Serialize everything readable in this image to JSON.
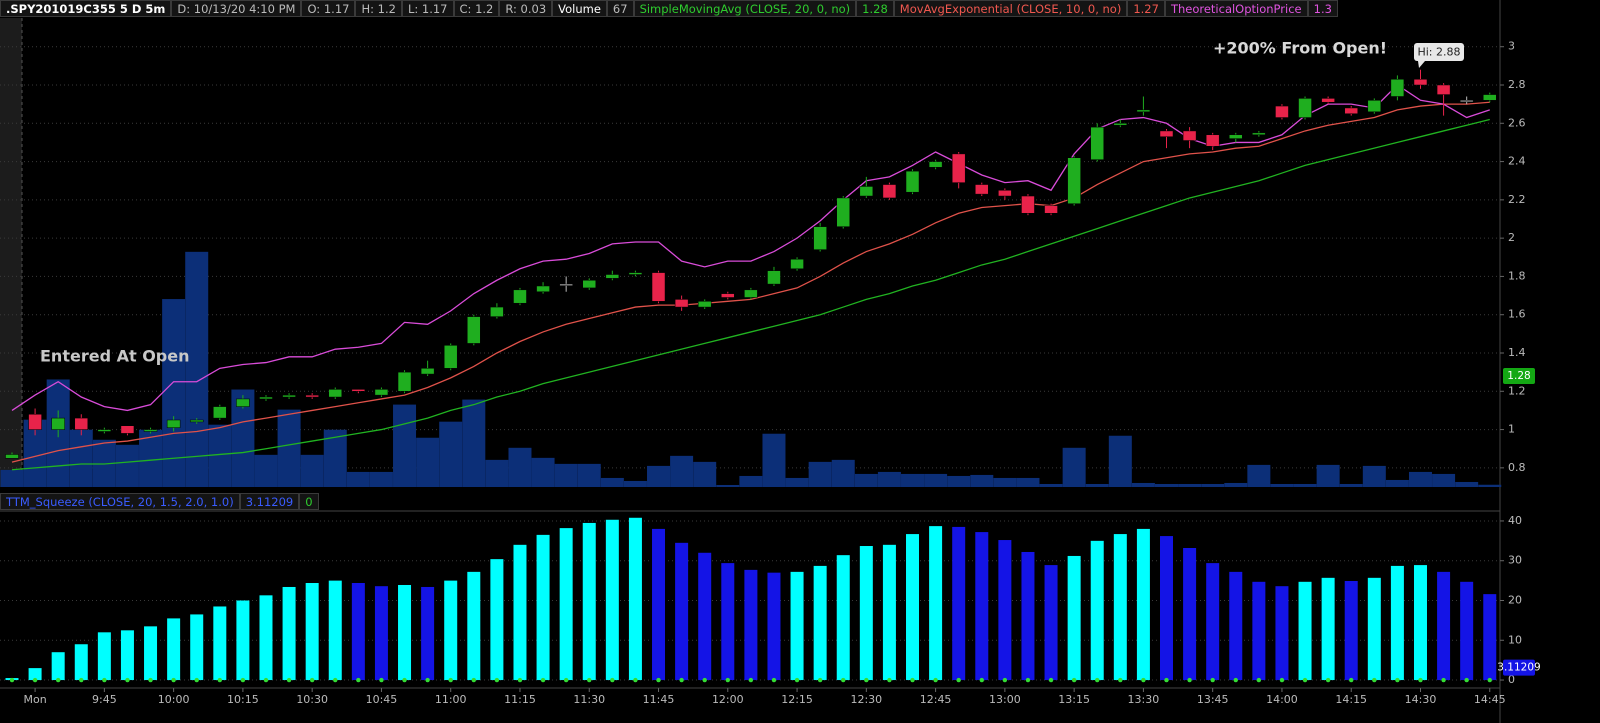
{
  "header": {
    "symbol": ".SPY201019C355 5 D 5m",
    "fields": [
      {
        "label": "D:",
        "value": "10/13/20 4:10 PM"
      },
      {
        "label": "O:",
        "value": 1.17
      },
      {
        "label": "H:",
        "value": 1.2
      },
      {
        "label": "L:",
        "value": 1.17
      },
      {
        "label": "C:",
        "value": 1.2
      },
      {
        "label": "R:",
        "value": 0.03
      }
    ]
  },
  "chart_data": [
    {
      "type": "candlestick",
      "ylim": [
        0.7,
        3.15
      ],
      "yticks": [
        0.8,
        1,
        1.2,
        1.4,
        1.6,
        1.8,
        2,
        2.2,
        2.4,
        2.6,
        2.8,
        3
      ],
      "grid": true,
      "up_color": "#1fae1f",
      "down_color": "#e8234a",
      "flat_color": "#bbbbbb",
      "open": [
        0.85,
        1.08,
        1.0,
        1.06,
        0.99,
        1.02,
        0.99,
        1.01,
        1.04,
        1.06,
        1.12,
        1.16,
        1.17,
        1.18,
        1.17,
        1.21,
        1.18,
        1.2,
        1.29,
        1.32,
        1.45,
        1.59,
        1.66,
        1.72,
        1.76,
        1.74,
        1.79,
        1.81,
        1.82,
        1.68,
        1.64,
        1.71,
        1.69,
        1.76,
        1.84,
        1.94,
        2.06,
        2.22,
        2.28,
        2.24,
        2.37,
        2.44,
        2.28,
        2.25,
        2.22,
        2.17,
        2.18,
        2.41,
        2.59,
        2.66,
        2.56,
        2.56,
        2.54,
        2.52,
        2.54,
        2.69,
        2.63,
        2.73,
        2.68,
        2.66,
        2.74,
        2.83,
        2.8,
        2.72,
        2.72
      ],
      "high": [
        0.88,
        1.11,
        1.1,
        1.08,
        1.01,
        1.02,
        1.01,
        1.07,
        1.06,
        1.13,
        1.18,
        1.18,
        1.19,
        1.19,
        1.22,
        1.21,
        1.22,
        1.31,
        1.36,
        1.45,
        1.6,
        1.66,
        1.74,
        1.77,
        1.8,
        1.79,
        1.83,
        1.83,
        1.83,
        1.7,
        1.68,
        1.72,
        1.74,
        1.85,
        1.9,
        2.08,
        2.22,
        2.32,
        2.29,
        2.36,
        2.41,
        2.45,
        2.29,
        2.26,
        2.23,
        2.18,
        2.43,
        2.6,
        2.62,
        2.74,
        2.57,
        2.58,
        2.55,
        2.55,
        2.56,
        2.7,
        2.74,
        2.74,
        2.69,
        2.73,
        2.85,
        2.88,
        2.81,
        2.74,
        2.76
      ],
      "low": [
        0.85,
        0.97,
        0.96,
        0.97,
        0.98,
        0.97,
        0.98,
        0.99,
        1.03,
        1.05,
        1.11,
        1.15,
        1.16,
        1.16,
        1.16,
        1.19,
        1.17,
        1.19,
        1.28,
        1.31,
        1.44,
        1.58,
        1.65,
        1.71,
        1.72,
        1.73,
        1.78,
        1.8,
        1.66,
        1.62,
        1.63,
        1.68,
        1.68,
        1.75,
        1.83,
        1.93,
        2.05,
        2.21,
        2.2,
        2.23,
        2.36,
        2.26,
        2.22,
        2.2,
        2.12,
        2.12,
        2.17,
        2.4,
        2.58,
        2.64,
        2.47,
        2.47,
        2.46,
        2.5,
        2.53,
        2.62,
        2.62,
        2.7,
        2.64,
        2.65,
        2.72,
        2.78,
        2.64,
        2.7,
        2.71
      ],
      "close": [
        0.87,
        1.0,
        1.06,
        1.0,
        1.0,
        0.98,
        1.0,
        1.05,
        1.05,
        1.12,
        1.16,
        1.17,
        1.18,
        1.17,
        1.21,
        1.2,
        1.21,
        1.3,
        1.32,
        1.44,
        1.59,
        1.64,
        1.73,
        1.75,
        1.76,
        1.78,
        1.81,
        1.82,
        1.67,
        1.64,
        1.67,
        1.69,
        1.73,
        1.83,
        1.89,
        2.06,
        2.21,
        2.27,
        2.21,
        2.35,
        2.4,
        2.29,
        2.23,
        2.22,
        2.13,
        2.13,
        2.42,
        2.58,
        2.6,
        2.67,
        2.53,
        2.51,
        2.48,
        2.54,
        2.55,
        2.63,
        2.73,
        2.71,
        2.65,
        2.72,
        2.83,
        2.8,
        2.75,
        2.72,
        2.75
      ],
      "volume": {
        "name": "Volume",
        "last_label": 67,
        "color": "#0c2f78",
        "lim": [
          0,
          14000
        ],
        "values": [
          510,
          2010,
          3210,
          1710,
          1410,
          1260,
          1710,
          5610,
          7020,
          1860,
          2910,
          960,
          2310,
          960,
          1710,
          450,
          450,
          2460,
          1470,
          1950,
          2610,
          810,
          1170,
          870,
          690,
          690,
          270,
          180,
          630,
          930,
          750,
          60,
          330,
          1590,
          270,
          750,
          810,
          390,
          450,
          390,
          390,
          330,
          360,
          270,
          270,
          90,
          1170,
          90,
          1530,
          120,
          90,
          90,
          90,
          120,
          660,
          90,
          90,
          660,
          90,
          630,
          210,
          450,
          390,
          150,
          67
        ]
      },
      "series": [
        {
          "name": "SimpleMovingAvg (CLOSE, 20, 0, no)",
          "last_label": 1.28,
          "color": "#21b321",
          "values": [
            0.79,
            0.8,
            0.81,
            0.82,
            0.82,
            0.83,
            0.84,
            0.85,
            0.86,
            0.87,
            0.88,
            0.9,
            0.92,
            0.94,
            0.96,
            0.98,
            1.0,
            1.03,
            1.06,
            1.1,
            1.13,
            1.17,
            1.2,
            1.24,
            1.27,
            1.3,
            1.33,
            1.36,
            1.39,
            1.42,
            1.45,
            1.48,
            1.51,
            1.54,
            1.57,
            1.6,
            1.64,
            1.68,
            1.71,
            1.75,
            1.78,
            1.82,
            1.86,
            1.89,
            1.93,
            1.97,
            2.01,
            2.05,
            2.09,
            2.13,
            2.17,
            2.21,
            2.24,
            2.27,
            2.3,
            2.34,
            2.38,
            2.41,
            2.44,
            2.47,
            2.5,
            2.53,
            2.56,
            2.59,
            2.62
          ]
        },
        {
          "name": "MovAvgExponential (CLOSE, 10, 0, no)",
          "last_label": 1.27,
          "color": "#e0524a",
          "values": [
            0.83,
            0.86,
            0.89,
            0.91,
            0.93,
            0.94,
            0.96,
            0.98,
            0.99,
            1.01,
            1.04,
            1.06,
            1.08,
            1.1,
            1.12,
            1.14,
            1.16,
            1.18,
            1.22,
            1.27,
            1.33,
            1.4,
            1.46,
            1.51,
            1.55,
            1.58,
            1.61,
            1.64,
            1.65,
            1.65,
            1.66,
            1.67,
            1.68,
            1.71,
            1.74,
            1.8,
            1.87,
            1.93,
            1.97,
            2.02,
            2.08,
            2.13,
            2.16,
            2.17,
            2.18,
            2.17,
            2.21,
            2.28,
            2.34,
            2.4,
            2.42,
            2.44,
            2.45,
            2.47,
            2.48,
            2.52,
            2.56,
            2.59,
            2.61,
            2.63,
            2.67,
            2.69,
            2.7,
            2.7,
            2.71
          ]
        },
        {
          "name": "TheoreticalOptionPrice",
          "last_label": 1.3,
          "color": "#d94cd9",
          "values": [
            1.1,
            1.18,
            1.25,
            1.17,
            1.12,
            1.1,
            1.13,
            1.25,
            1.25,
            1.32,
            1.34,
            1.35,
            1.38,
            1.38,
            1.42,
            1.43,
            1.45,
            1.56,
            1.55,
            1.62,
            1.71,
            1.78,
            1.84,
            1.88,
            1.89,
            1.92,
            1.97,
            1.98,
            1.98,
            1.88,
            1.85,
            1.88,
            1.88,
            1.93,
            2.0,
            2.09,
            2.2,
            2.3,
            2.32,
            2.38,
            2.45,
            2.39,
            2.33,
            2.29,
            2.3,
            2.25,
            2.44,
            2.57,
            2.62,
            2.63,
            2.6,
            2.52,
            2.48,
            2.5,
            2.5,
            2.54,
            2.64,
            2.7,
            2.7,
            2.68,
            2.8,
            2.72,
            2.7,
            2.63,
            2.67
          ]
        }
      ],
      "annotations": [
        "Entered At Open",
        "+200% From Open!",
        "Hi: 2.88"
      ]
    },
    {
      "type": "histogram",
      "ylim": [
        -2,
        42
      ],
      "yticks": [
        0,
        10,
        20,
        30,
        40
      ],
      "grid": true,
      "up_color": "#00ffff",
      "down_color": "#1414e6",
      "dot_color": "#33dd33",
      "categories": [
        null,
        "Mon",
        null,
        null,
        "9:45",
        null,
        null,
        "10:00",
        null,
        null,
        "10:15",
        null,
        null,
        "10:30",
        null,
        null,
        "10:45",
        null,
        null,
        "11:00",
        null,
        null,
        "11:15",
        null,
        null,
        "11:30",
        null,
        null,
        "11:45",
        null,
        null,
        "12:00",
        null,
        null,
        "12:15",
        null,
        null,
        "12:30",
        null,
        null,
        "12:45",
        null,
        null,
        "13:00",
        null,
        null,
        "13:15",
        null,
        null,
        "13:30",
        null,
        null,
        "13:45",
        null,
        null,
        "14:00",
        null,
        null,
        "14:15",
        null,
        null,
        "14:30",
        null,
        null,
        "14:45"
      ],
      "series": [
        {
          "name": "TTM_Squeeze (CLOSE, 20, 1.5, 2.0, 1.0)",
          "last_label": 3.11209,
          "state_label": 0,
          "values": [
            0.5,
            3,
            7,
            9,
            12,
            12.5,
            13.5,
            15.5,
            16.5,
            18.5,
            20,
            21.3,
            23.4,
            24.4,
            25,
            24.4,
            23.6,
            23.9,
            23.4,
            25,
            27.2,
            30.4,
            34,
            36.5,
            38.2,
            39.5,
            40.3,
            40.8,
            38,
            34.5,
            32,
            29.4,
            27.7,
            27,
            27.2,
            28.7,
            31.4,
            33.7,
            34,
            36.7,
            38.7,
            38.5,
            37.2,
            35.2,
            32.2,
            28.9,
            31.2,
            35,
            36.7,
            38,
            36.2,
            33.2,
            29.4,
            27.2,
            24.7,
            23.6,
            24.7,
            25.7,
            24.9,
            25.7,
            28.7,
            28.9,
            27.2,
            24.7,
            21.6
          ]
        }
      ]
    }
  ]
}
